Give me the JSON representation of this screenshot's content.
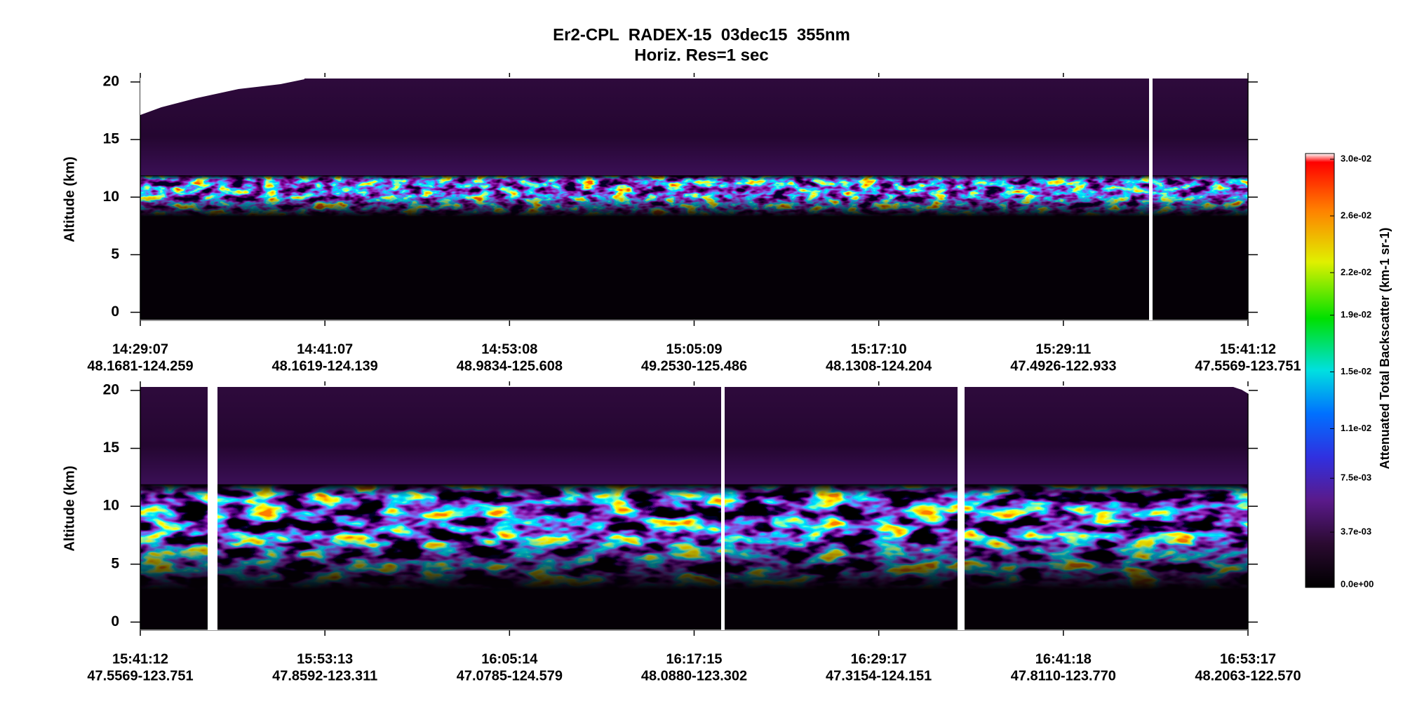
{
  "title": "Er2-CPL  RADEX-15  03dec15  355nm",
  "subtitle": "Horiz. Res=1 sec",
  "chart_data": [
    {
      "type": "heatmap",
      "ylabel": "Altitude (km)",
      "ylim": [
        -0.7,
        20.3
      ],
      "yticks": [
        0,
        5,
        10,
        15,
        20
      ],
      "xticks": [
        {
          "time": "14:29:07",
          "location": "48.1681-124.259"
        },
        {
          "time": "14:41:07",
          "location": "48.1619-124.139"
        },
        {
          "time": "14:53:08",
          "location": "48.9834-125.608"
        },
        {
          "time": "15:05:09",
          "location": "49.2530-125.486"
        },
        {
          "time": "15:17:10",
          "location": "48.1308-124.204"
        },
        {
          "time": "15:29:11",
          "location": "47.4926-122.933"
        },
        {
          "time": "15:41:12",
          "location": "47.5569-123.751"
        }
      ]
    },
    {
      "type": "heatmap",
      "ylabel": "Altitude (km)",
      "ylim": [
        -0.7,
        20.3
      ],
      "yticks": [
        0,
        5,
        10,
        15,
        20
      ],
      "xticks": [
        {
          "time": "15:41:12",
          "location": "47.5569-123.751"
        },
        {
          "time": "15:53:13",
          "location": "47.8592-123.311"
        },
        {
          "time": "16:05:14",
          "location": "47.0785-124.579"
        },
        {
          "time": "16:17:15",
          "location": "48.0880-123.302"
        },
        {
          "time": "16:29:17",
          "location": "47.3154-124.151"
        },
        {
          "time": "16:41:18",
          "location": "47.8110-123.770"
        },
        {
          "time": "16:53:17",
          "location": "48.2063-122.570"
        }
      ]
    }
  ],
  "colorbar": {
    "label": "Attenuated Total Backscatter (km-1 sr-1)",
    "clim": [
      -0.0002,
      0.0304
    ],
    "ticks": [
      {
        "value": 0,
        "label": "0.0e+00"
      },
      {
        "value": 0.0037,
        "label": "3.7e-03"
      },
      {
        "value": 0.0075,
        "label": "7.5e-03"
      },
      {
        "value": 0.011,
        "label": "1.1e-02"
      },
      {
        "value": 0.015,
        "label": "1.5e-02"
      },
      {
        "value": 0.019,
        "label": "1.9e-02"
      },
      {
        "value": 0.022,
        "label": "2.2e-02"
      },
      {
        "value": 0.026,
        "label": "2.6e-02"
      },
      {
        "value": 0.03,
        "label": "3.0e-02"
      }
    ]
  }
}
